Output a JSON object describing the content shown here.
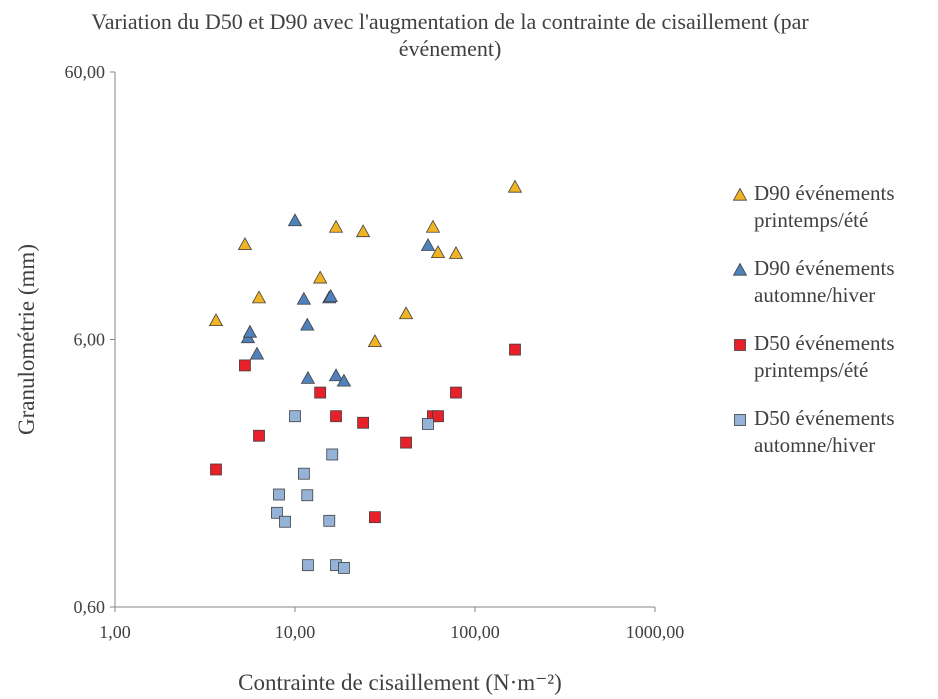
{
  "chart_data": {
    "type": "scatter",
    "title": "Variation du D50 et D90 avec l'augmentation de la contrainte de cisaillement (par événement)",
    "x_label": "Contrainte de cisaillement (N·m⁻²)",
    "y_label": "Granulométrie (mm)",
    "x_log": true,
    "y_log": true,
    "grid": false,
    "legend": "right",
    "xlim": [
      1,
      1000
    ],
    "xticks": [
      {
        "value": 1,
        "label": "1,00"
      },
      {
        "value": 10,
        "label": "10,00"
      },
      {
        "value": 100,
        "label": "100,00"
      },
      {
        "value": 1000,
        "label": "1000,00"
      }
    ],
    "ylim": [
      0.6,
      60
    ],
    "yticks": [
      {
        "value": 0.6,
        "label": "0,60"
      },
      {
        "value": 6,
        "label": "6,00"
      },
      {
        "value": 60,
        "label": "60,00"
      }
    ],
    "series": [
      {
        "name": "D90 événements printemps/été",
        "color": "#f0b323",
        "marker": "triangle",
        "x": [
          3.64,
          5.27,
          6.31,
          13.8,
          16.9,
          23.9,
          27.8,
          41.4,
          58.4,
          62.3,
          78.4,
          166.8
        ],
        "values": [
          7.07,
          13.6,
          8.6,
          10.2,
          15.8,
          15.2,
          5.9,
          7.5,
          15.8,
          12.7,
          12.6,
          22.3
        ]
      },
      {
        "name": "D90 événements automne/hiver",
        "color": "#4f81bd",
        "marker": "triangle",
        "x": [
          5.48,
          5.62,
          6.15,
          10,
          11.2,
          11.7,
          11.8,
          15.5,
          15.8,
          16.9,
          18.7,
          54.8
        ],
        "values": [
          6.1,
          6.4,
          5.3,
          16.7,
          8.5,
          6.8,
          4.3,
          8.6,
          8.7,
          4.4,
          4.2,
          13.5
        ]
      },
      {
        "name": "D50 événements printemps/été",
        "color": "#e8202a",
        "marker": "square",
        "x": [
          3.64,
          5.27,
          6.31,
          13.8,
          16.9,
          23.9,
          27.8,
          41.4,
          58.4,
          62.3,
          78.4,
          166.8
        ],
        "values": [
          1.96,
          4.8,
          2.62,
          3.8,
          3.1,
          2.93,
          1.3,
          2.47,
          3.1,
          3.1,
          3.8,
          5.5
        ]
      },
      {
        "name": "D50 événements automne/hiver",
        "color": "#95b3d7",
        "marker": "square",
        "x": [
          7.94,
          8.15,
          8.8,
          10,
          11.2,
          11.7,
          11.8,
          15.5,
          16.1,
          16.9,
          18.7,
          54.8
        ],
        "values": [
          1.35,
          1.58,
          1.25,
          3.1,
          1.89,
          1.57,
          0.86,
          1.26,
          2.23,
          0.86,
          0.84,
          2.9
        ]
      }
    ]
  }
}
